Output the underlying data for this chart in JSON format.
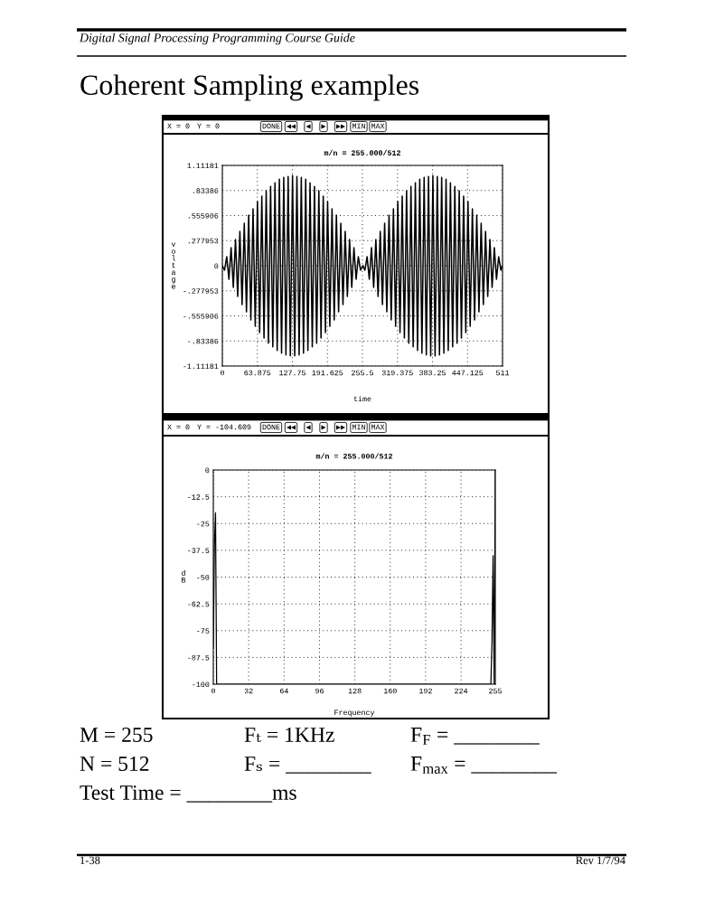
{
  "chart_data": [
    {
      "type": "line",
      "title": "m/n = 255.000/512",
      "xlabel": "time",
      "ylabel": "voltage",
      "x": [
        0,
        4,
        8,
        12,
        16,
        20,
        24,
        28,
        32,
        36,
        40,
        44,
        48,
        52,
        56,
        60,
        64,
        68,
        72,
        76,
        80,
        84,
        88,
        92,
        96,
        100,
        104,
        108,
        112,
        116,
        120,
        124,
        128,
        132,
        136,
        140,
        144,
        148,
        152,
        156,
        160,
        164,
        168,
        172,
        176,
        180,
        184,
        188,
        192,
        196,
        200,
        204,
        208,
        212,
        216,
        220,
        224,
        228,
        232,
        236,
        240,
        244,
        248,
        252,
        256,
        260,
        264,
        268,
        272,
        276,
        280,
        284,
        288,
        292,
        296,
        300,
        304,
        308,
        312,
        316,
        320,
        324,
        328,
        332,
        336,
        340,
        344,
        348,
        352,
        356,
        360,
        364,
        368,
        372,
        376,
        380,
        384,
        388,
        392,
        396,
        400,
        404,
        408,
        412,
        416,
        420,
        424,
        428,
        432,
        436,
        440,
        444,
        448,
        452,
        456,
        460,
        464,
        468,
        472,
        476,
        480,
        484,
        488,
        492,
        496,
        500,
        504,
        508,
        511
      ],
      "series": [
        {
          "color": "#000000",
          "values": [
            0,
            -0.05,
            0.1,
            -0.15,
            0.2,
            -0.24,
            0.29,
            -0.34,
            0.38,
            -0.43,
            0.47,
            -0.51,
            0.56,
            -0.6,
            0.63,
            -0.67,
            0.71,
            -0.74,
            0.77,
            -0.8,
            0.83,
            -0.86,
            0.88,
            -0.9,
            0.92,
            -0.94,
            0.96,
            -0.97,
            0.98,
            -0.99,
            0.99,
            -1.0,
            1.0,
            -1.0,
            0.99,
            -0.99,
            0.98,
            -0.97,
            0.96,
            -0.94,
            0.92,
            -0.9,
            0.88,
            -0.86,
            0.83,
            -0.8,
            0.77,
            -0.74,
            0.71,
            -0.67,
            0.63,
            -0.6,
            0.56,
            -0.51,
            0.47,
            -0.43,
            0.38,
            -0.34,
            0.29,
            -0.24,
            0.2,
            -0.15,
            0.1,
            -0.05,
            0,
            -0.05,
            0.1,
            -0.15,
            0.2,
            -0.24,
            0.29,
            -0.34,
            0.38,
            -0.43,
            0.47,
            -0.51,
            0.56,
            -0.6,
            0.63,
            -0.67,
            0.71,
            -0.74,
            0.77,
            -0.8,
            0.83,
            -0.86,
            0.88,
            -0.9,
            0.92,
            -0.94,
            0.96,
            -0.97,
            0.98,
            -0.99,
            0.99,
            -1.0,
            1.0,
            -1.0,
            0.99,
            -0.99,
            0.98,
            -0.97,
            0.96,
            -0.94,
            0.92,
            -0.9,
            0.88,
            -0.86,
            0.83,
            -0.8,
            0.77,
            -0.74,
            0.71,
            -0.67,
            0.63,
            -0.6,
            0.56,
            -0.51,
            0.47,
            -0.43,
            0.38,
            -0.34,
            0.29,
            -0.24,
            0.2,
            -0.15,
            0.1,
            -0.05,
            0
          ]
        }
      ],
      "xlim": [
        0,
        511
      ],
      "ylim": [
        -1.11181,
        1.11181
      ],
      "xticks": [
        0,
        63.875,
        127.75,
        191.625,
        255.5,
        319.375,
        383.25,
        447.125,
        511
      ],
      "yticks": [
        {
          "value": -1.11181,
          "label": "-1.11181"
        },
        {
          "value": -0.83386,
          "label": "-.83386"
        },
        {
          "value": -0.555906,
          "label": "-.555906"
        },
        {
          "value": -0.277953,
          "label": "-.277953"
        },
        0,
        {
          "value": 0.277953,
          "label": ".277953"
        },
        {
          "value": 0.555906,
          "label": ".555906"
        },
        {
          "value": 0.83386,
          "label": ".83386"
        },
        1.11181
      ],
      "grid": true,
      "annotations": [
        "Digital Signal Processing Programming Course Guide",
        "Coherent Sampling examples",
        "X = 0",
        "Y = 0",
        "DONE",
        "◀◀",
        "◀",
        "▶",
        "▶▶",
        "MIN",
        "MAX"
      ]
    },
    {
      "type": "line",
      "title": "m/n = 255.000/512",
      "xlabel": "Frequency",
      "ylabel": "dB",
      "x": [
        0,
        1,
        2,
        3,
        251,
        252,
        253,
        254,
        255
      ],
      "series": [
        {
          "color": "#000000",
          "values": [
            -83,
            -35,
            -20,
            -100,
            -100,
            -80,
            -40,
            -100,
            0
          ]
        }
      ],
      "xlim": [
        0,
        255
      ],
      "ylim": [
        -100,
        0
      ],
      "xticks": [
        0,
        32,
        64,
        96,
        128,
        160,
        192,
        224,
        255
      ],
      "yticks": [
        0,
        -12.5,
        -25,
        -37.5,
        -50,
        -62.5,
        -75,
        -87.5,
        -100
      ],
      "grid": true,
      "annotations": [
        "X = 0",
        "Y = -104.609",
        "DONE",
        "◀◀",
        "◀",
        "▶",
        "▶▶",
        "MIN",
        "MAX",
        "M = 255",
        "Fₜ = 1KHz",
        "F$_{F}$ = ________",
        "N = 512",
        "Fₛ = ________",
        "F$_{max}$ = ________",
        "Test Time = ________ms",
        "1-38",
        "Rev 1/7/94"
      ]
    }
  ]
}
